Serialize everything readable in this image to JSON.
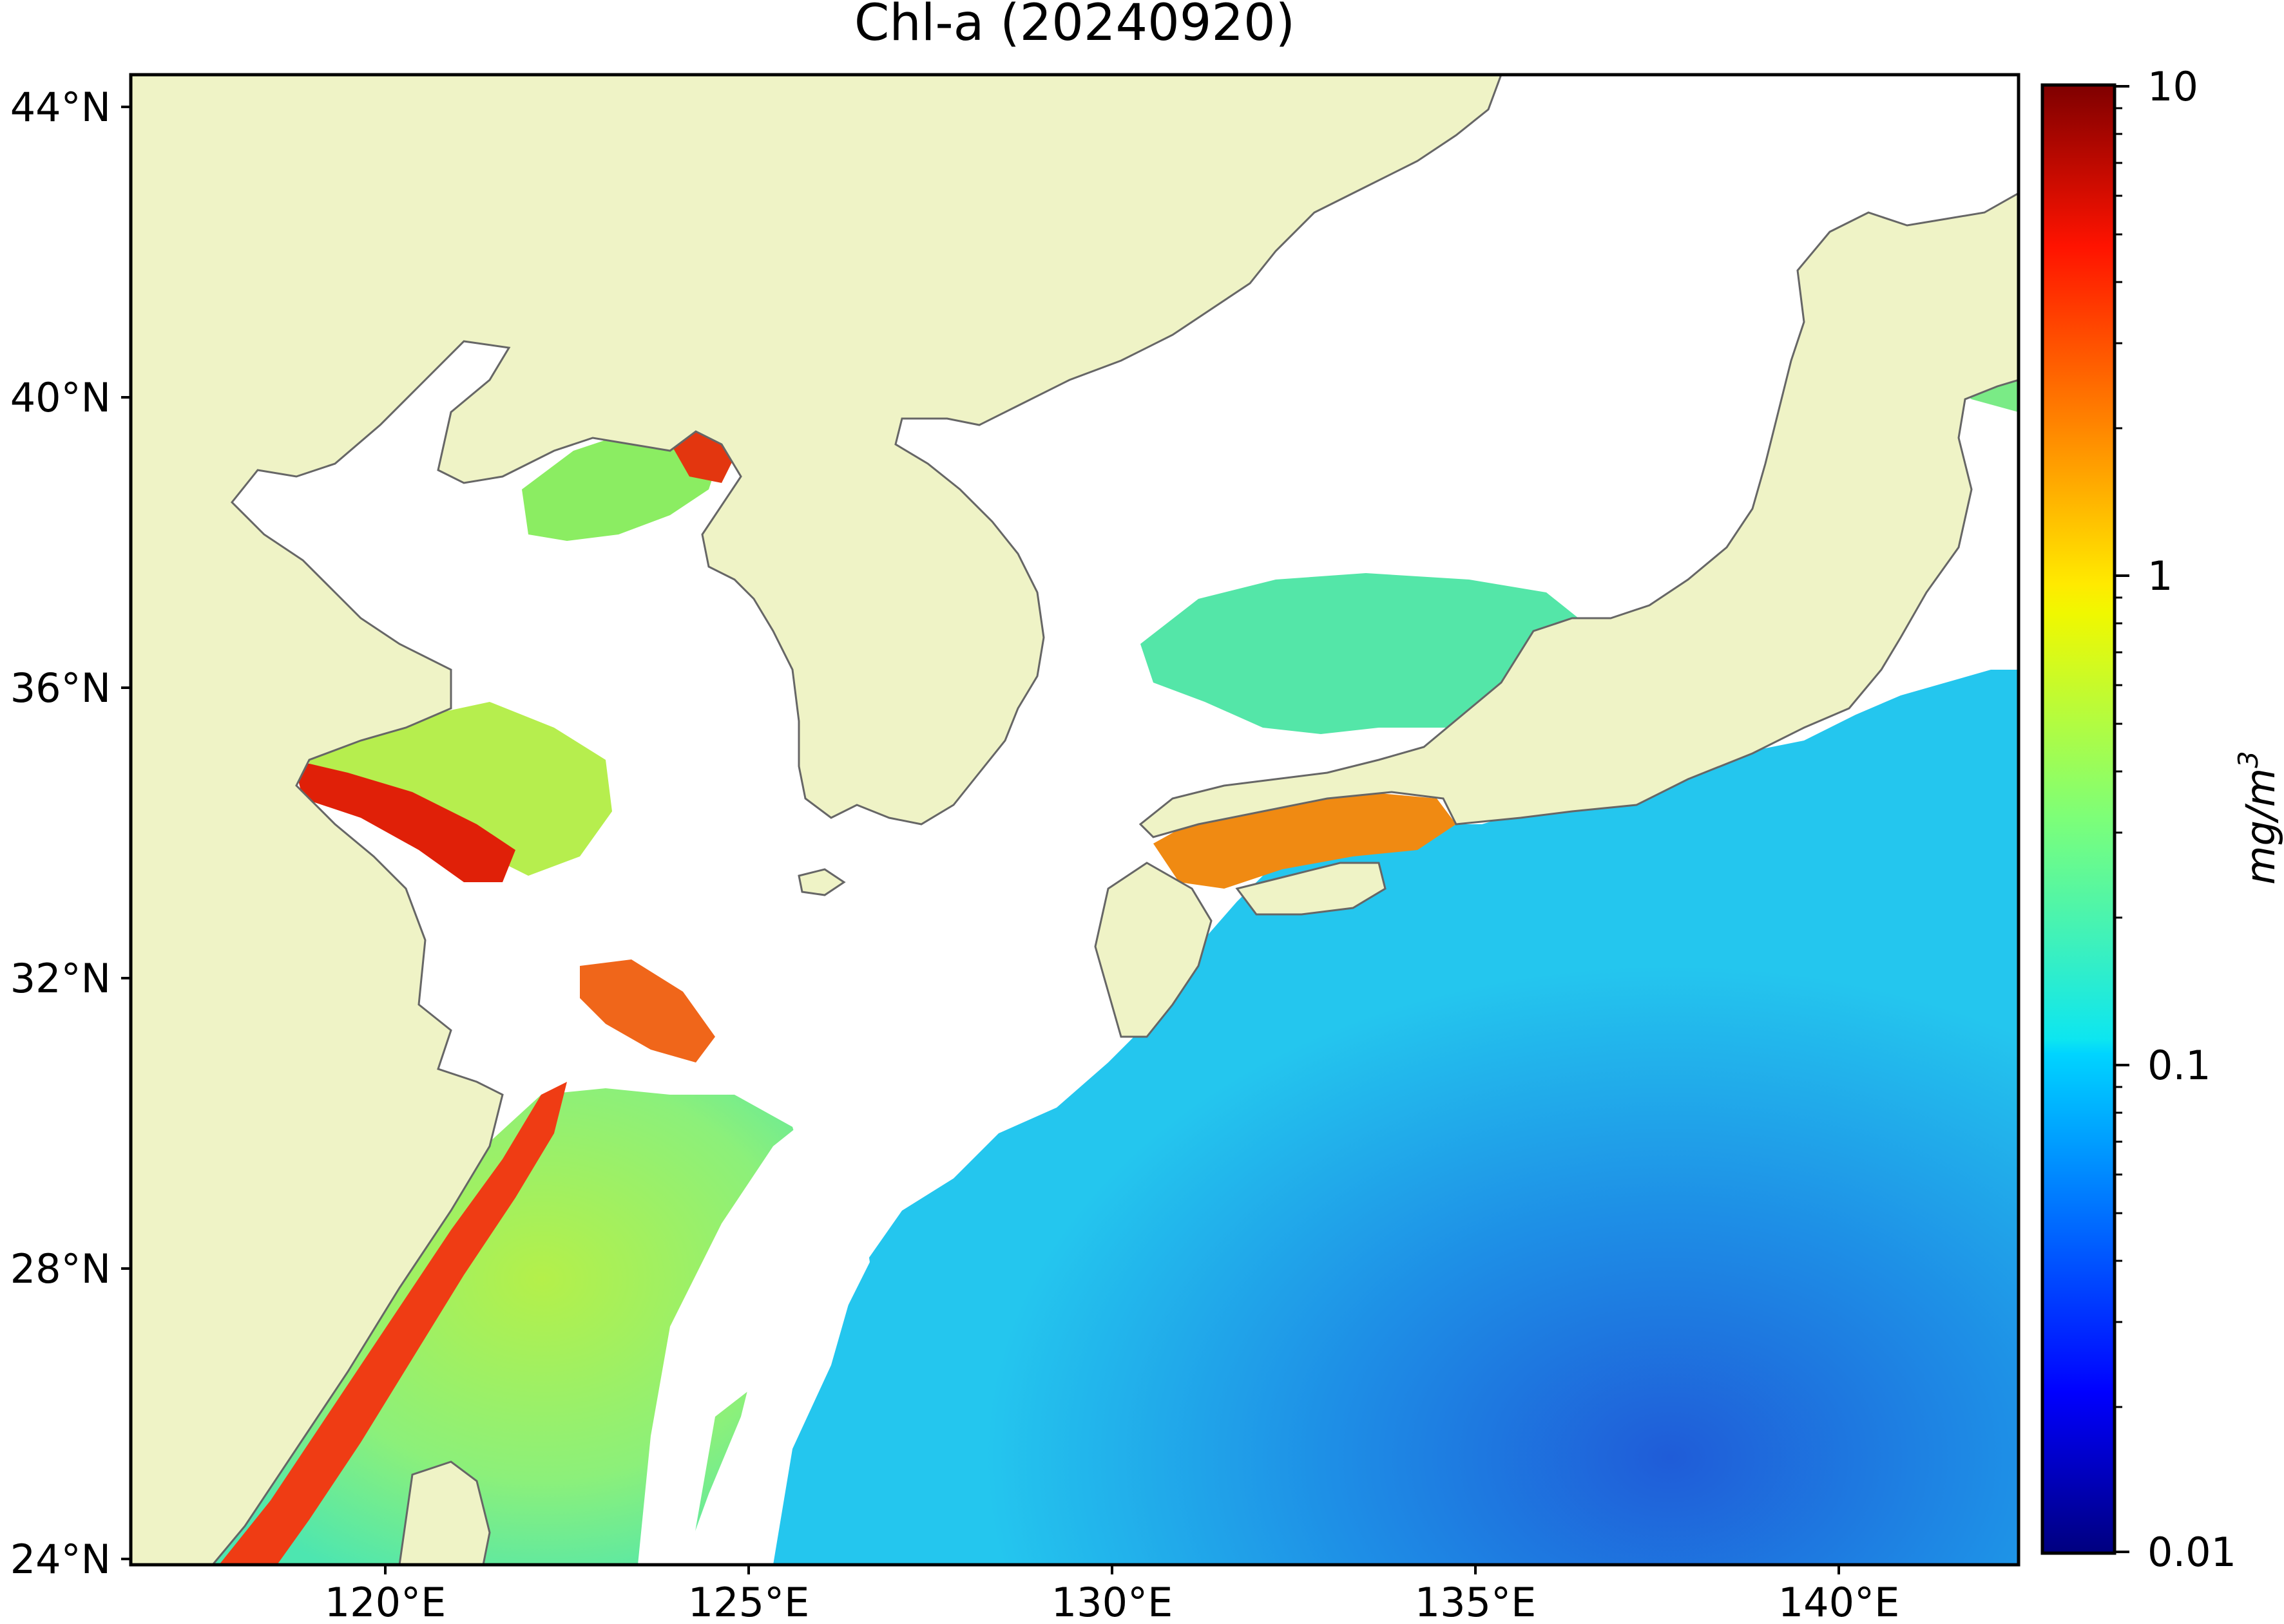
{
  "title": "Chl-a (20240920)",
  "map": {
    "lat_labels": [
      "44°N",
      "40°N",
      "36°N",
      "32°N",
      "28°N",
      "24°N"
    ],
    "lat_values": [
      44,
      40,
      36,
      32,
      28,
      24
    ],
    "lon_labels": [
      "120°E",
      "125°E",
      "130°E",
      "135°E",
      "140°E"
    ],
    "lon_values": [
      120,
      125,
      130,
      135,
      140
    ],
    "lon_range": [
      117,
      143
    ],
    "lat_range": [
      24,
      44.5
    ],
    "land_color": "#eff3c6",
    "coastline_color": "#666666",
    "no_data_color": "#ffffff"
  },
  "colorbar": {
    "tick_labels": [
      "10",
      "1",
      "0.1",
      "0.01"
    ],
    "tick_values": [
      10,
      1,
      0.1,
      0.01
    ],
    "scale": "log",
    "range": [
      0.01,
      10
    ],
    "colormap": "jet",
    "label_base": "mg/m",
    "label_exp": "3"
  }
}
